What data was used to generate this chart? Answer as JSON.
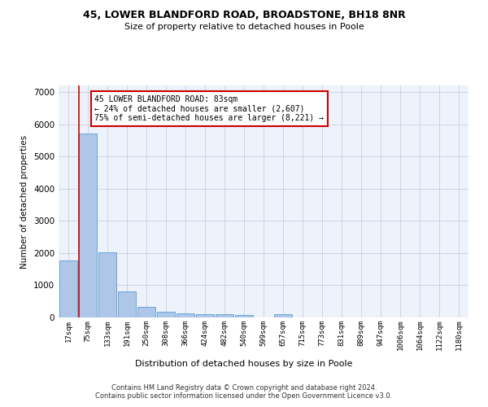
{
  "title1": "45, LOWER BLANDFORD ROAD, BROADSTONE, BH18 8NR",
  "title2": "Size of property relative to detached houses in Poole",
  "xlabel": "Distribution of detached houses by size in Poole",
  "ylabel": "Number of detached properties",
  "bar_labels": [
    "17sqm",
    "75sqm",
    "133sqm",
    "191sqm",
    "250sqm",
    "308sqm",
    "366sqm",
    "424sqm",
    "482sqm",
    "540sqm",
    "599sqm",
    "657sqm",
    "715sqm",
    "773sqm",
    "831sqm",
    "889sqm",
    "947sqm",
    "1006sqm",
    "1064sqm",
    "1122sqm",
    "1180sqm"
  ],
  "bar_values": [
    1780,
    5700,
    2020,
    800,
    340,
    185,
    120,
    100,
    95,
    80,
    0,
    100,
    0,
    0,
    0,
    0,
    0,
    0,
    0,
    0,
    0
  ],
  "bar_color": "#aec6e8",
  "bar_edge_color": "#5a9fd4",
  "property_size": "83sqm",
  "annotation_text": "45 LOWER BLANDFORD ROAD: 83sqm\n← 24% of detached houses are smaller (2,607)\n75% of semi-detached houses are larger (8,221) →",
  "annotation_box_color": "#ffffff",
  "annotation_box_edge": "#cc0000",
  "red_line_color": "#cc0000",
  "footer1": "Contains HM Land Registry data © Crown copyright and database right 2024.",
  "footer2": "Contains public sector information licensed under the Open Government Licence v3.0.",
  "ylim": [
    0,
    7200
  ],
  "background_color": "#eef2fa"
}
